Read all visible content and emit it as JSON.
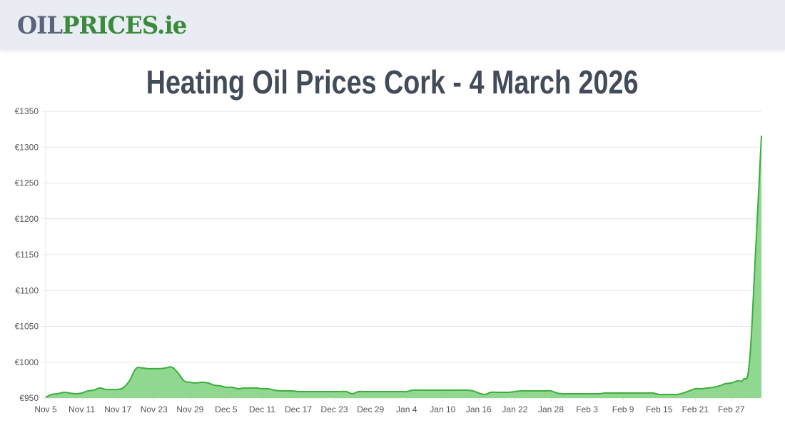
{
  "header": {
    "logo_part1": "OIL",
    "logo_part2": "PRICES.ie"
  },
  "page_title": "Heating Oil Prices Cork - 4 March 2026",
  "colors": {
    "line": "#3cae3c",
    "fill": "#90d790",
    "grid": "#e5e5e5",
    "header_bg": "#e9ecf3"
  },
  "chart_data": {
    "type": "area",
    "title": "",
    "xlabel": "",
    "ylabel": "",
    "ylim": [
      950,
      1350
    ],
    "y_ticks": [
      "€950",
      "€1000",
      "€1050",
      "€1100",
      "€1150",
      "€1200",
      "€1250",
      "€1300",
      "€1350"
    ],
    "y_tick_values": [
      950,
      1000,
      1050,
      1100,
      1150,
      1200,
      1250,
      1300,
      1350
    ],
    "x_tick_labels": [
      "Nov 5",
      "Nov 11",
      "Nov 17",
      "Nov 23",
      "Nov 29",
      "Dec 5",
      "Dec 11",
      "Dec 17",
      "Dec 23",
      "Dec 29",
      "Jan 4",
      "Jan 10",
      "Jan 16",
      "Jan 22",
      "Jan 28",
      "Feb 3",
      "Feb 9",
      "Feb 15",
      "Feb 21",
      "Feb 27"
    ],
    "grid": true,
    "legend": "none",
    "x_interval_days": 1,
    "values": [
      951,
      955,
      956,
      958,
      957,
      956,
      957,
      960,
      961,
      964,
      962,
      962,
      962,
      965,
      975,
      991,
      992,
      991,
      991,
      991,
      992,
      993,
      985,
      974,
      972,
      971,
      972,
      971,
      968,
      967,
      965,
      965,
      963,
      964,
      964,
      964,
      963,
      963,
      961,
      960,
      960,
      960,
      959,
      959,
      959,
      959,
      959,
      959,
      959,
      959,
      959,
      956,
      959,
      959,
      959,
      959,
      959,
      959,
      959,
      959,
      959,
      961,
      961,
      961,
      961,
      961,
      961,
      961,
      961,
      961,
      961,
      960,
      957,
      955,
      958,
      958,
      958,
      958,
      959,
      960,
      960,
      960,
      960,
      960,
      960,
      957,
      956,
      956,
      956,
      956,
      956,
      956,
      956,
      957,
      957,
      957,
      957,
      957,
      957,
      957,
      957,
      957,
      955,
      955,
      955,
      955,
      957,
      960,
      963,
      963,
      964,
      965,
      967,
      970,
      971,
      974,
      976,
      1000,
      1150,
      1316
    ]
  }
}
